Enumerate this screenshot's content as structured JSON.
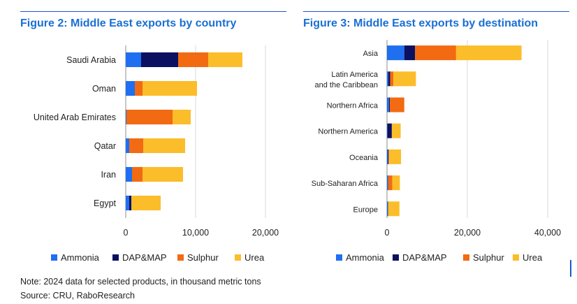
{
  "colors": {
    "Ammonia": "#1f6ff0",
    "DAP&MAP": "#0b1060",
    "Sulphur": "#f26a12",
    "Urea": "#fbbd2a",
    "title": "#1a6fd4",
    "rule": "#1f57c9",
    "grid": "#d9d9d9"
  },
  "chart_data": [
    {
      "type": "bar",
      "orientation": "horizontal",
      "stacked": true,
      "title": "Figure 2: Middle East exports by country",
      "categories": [
        [
          "Saudi Arabia"
        ],
        [
          "Oman"
        ],
        [
          "United Arab Emirates"
        ],
        [
          "Qatar"
        ],
        [
          "Iran"
        ],
        [
          "Egypt"
        ]
      ],
      "series": [
        {
          "name": "Ammonia",
          "values": [
            2200,
            1300,
            100,
            500,
            900,
            500
          ]
        },
        {
          "name": "DAP&MAP",
          "values": [
            5300,
            0,
            0,
            0,
            0,
            300
          ]
        },
        {
          "name": "Sulphur",
          "values": [
            4300,
            1100,
            6600,
            2000,
            1500,
            0
          ]
        },
        {
          "name": "Urea",
          "values": [
            4900,
            7800,
            2600,
            6000,
            5800,
            4200
          ]
        }
      ],
      "xlim": [
        0,
        20000
      ],
      "xticks": [
        "0",
        "10,000",
        "20,000"
      ],
      "xlabel": "",
      "ylabel": "",
      "legend": [
        "Ammonia",
        "DAP&MAP",
        "Sulphur",
        "Urea"
      ]
    },
    {
      "type": "bar",
      "orientation": "horizontal",
      "stacked": true,
      "title": "Figure 3: Middle East exports by destination",
      "categories": [
        [
          "Asia"
        ],
        [
          "Latin America",
          "and the Caribbean"
        ],
        [
          "Northern Africa"
        ],
        [
          "Northern America"
        ],
        [
          "Oceania"
        ],
        [
          "Sub-Saharan Africa"
        ],
        [
          "Europe"
        ]
      ],
      "series": [
        {
          "name": "Ammonia",
          "values": [
            4300,
            300,
            500,
            100,
            200,
            200,
            200
          ]
        },
        {
          "name": "DAP&MAP",
          "values": [
            2700,
            500,
            200,
            1100,
            200,
            100,
            100
          ]
        },
        {
          "name": "Sulphur",
          "values": [
            10200,
            800,
            3600,
            0,
            100,
            1000,
            0
          ]
        },
        {
          "name": "Urea",
          "values": [
            16300,
            5600,
            0,
            2200,
            3000,
            1900,
            2800
          ]
        }
      ],
      "xlim": [
        0,
        40000
      ],
      "xticks": [
        "0",
        "20,000",
        "40,000"
      ],
      "xlabel": "",
      "ylabel": "",
      "legend": [
        "Ammonia",
        "DAP&MAP",
        "Sulphur",
        "Urea"
      ]
    }
  ],
  "footer": {
    "note": "Note: 2024 data for selected products, in thousand metric tons",
    "source": "Source: CRU, RaboResearch"
  }
}
